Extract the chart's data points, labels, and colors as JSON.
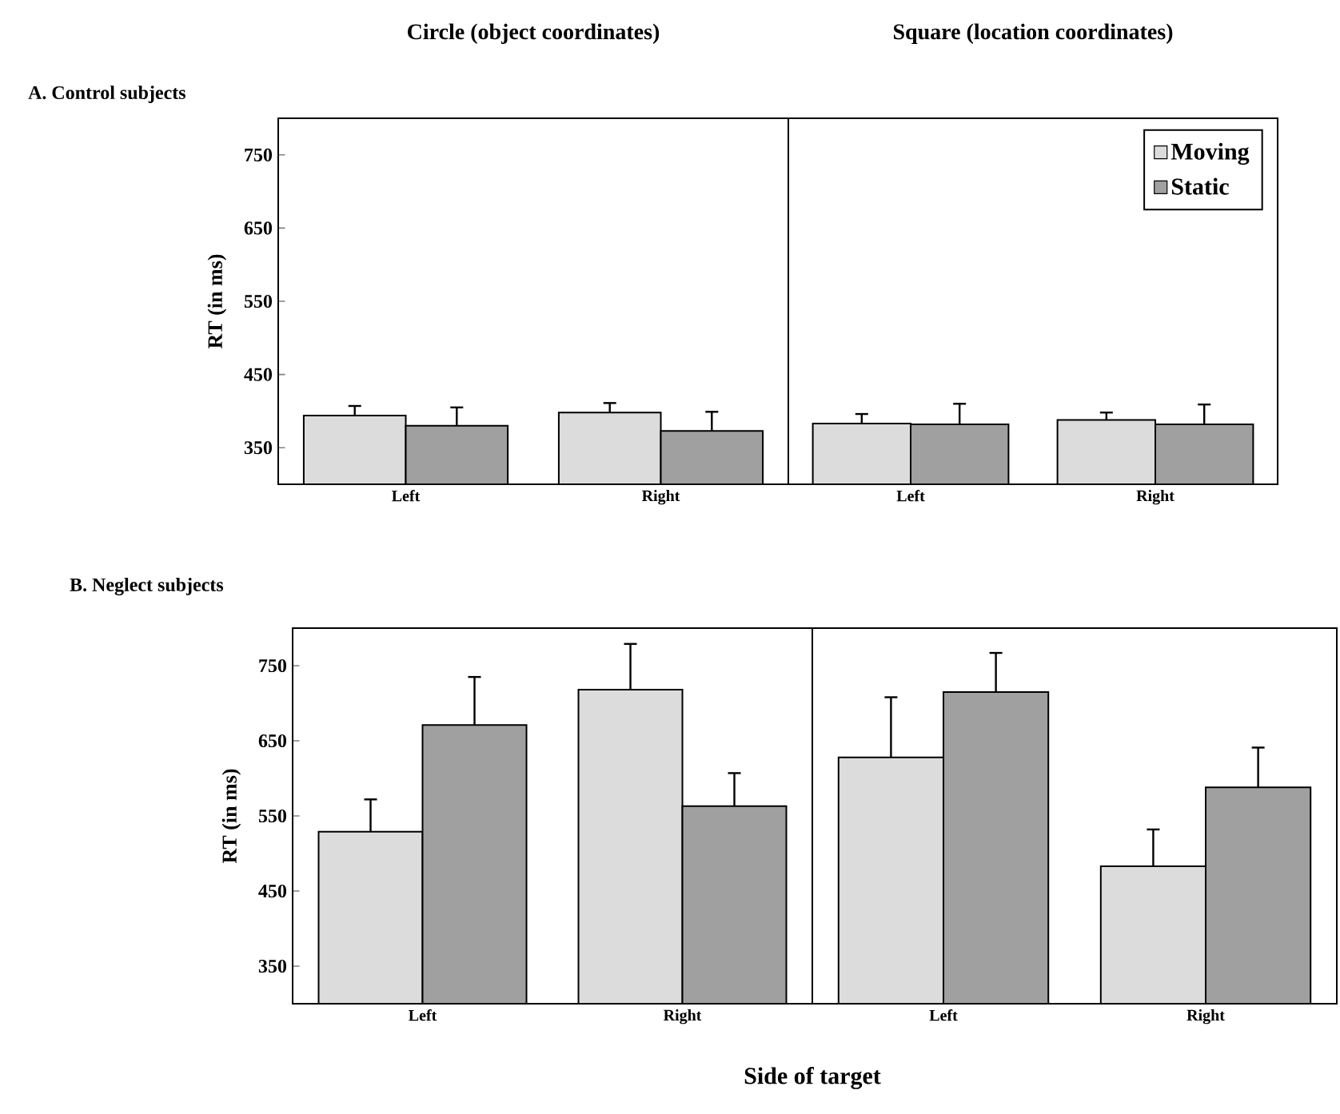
{
  "chart_data": [
    {
      "type": "bar",
      "title": "Circle (object coordinates)",
      "annotations": [
        "A. Control subjects"
      ],
      "ylabel": "RT (in ms)",
      "categories": [
        "Left",
        "Right"
      ],
      "ylim": [
        300,
        800
      ],
      "yticks": [
        350,
        450,
        550,
        650,
        750
      ],
      "series": [
        {
          "color": "#dcdcdc",
          "values": [
            394,
            398
          ],
          "errors": [
            [
              394,
              407
            ],
            [
              398,
              411
            ]
          ]
        },
        {
          "color": "#a0a0a0",
          "values": [
            380,
            373
          ],
          "errors": [
            [
              380,
              405
            ],
            [
              373,
              399
            ]
          ]
        }
      ]
    },
    {
      "type": "bar",
      "title": "Square (location coordinates)",
      "categories": [
        "Left",
        "Right"
      ],
      "ylim": [
        300,
        800
      ],
      "yticks": [
        350,
        450,
        550,
        650,
        750
      ],
      "tick_labels": "x",
      "legend": "top right",
      "series": [
        {
          "name": "Moving",
          "color": "#dcdcdc",
          "values": [
            383,
            388
          ],
          "errors": [
            [
              383,
              396
            ],
            [
              388,
              398
            ]
          ]
        },
        {
          "name": "Static",
          "color": "#a0a0a0",
          "values": [
            382,
            382
          ],
          "errors": [
            [
              382,
              410
            ],
            [
              382,
              409
            ]
          ]
        }
      ]
    },
    {
      "type": "bar",
      "annotations": [
        "B. Neglect subjects"
      ],
      "ylabel": "RT (in ms)",
      "xlabel": "Side of target",
      "categories": [
        "Left",
        "Right"
      ],
      "ylim": [
        300,
        800
      ],
      "yticks": [
        350,
        450,
        550,
        650,
        750
      ],
      "series": [
        {
          "color": "#dcdcdc",
          "values": [
            529,
            718
          ],
          "errors": [
            [
              529,
              572
            ],
            [
              718,
              779
            ]
          ]
        },
        {
          "color": "#a0a0a0",
          "values": [
            671,
            563
          ],
          "errors": [
            [
              671,
              735
            ],
            [
              563,
              607
            ]
          ]
        }
      ]
    },
    {
      "type": "bar",
      "categories": [
        "Left",
        "Right"
      ],
      "ylim": [
        300,
        800
      ],
      "yticks": [
        350,
        450,
        550,
        650,
        750
      ],
      "tick_labels": "x",
      "series": [
        {
          "color": "#dcdcdc",
          "values": [
            628,
            483
          ],
          "errors": [
            [
              628,
              708
            ],
            [
              483,
              532
            ]
          ]
        },
        {
          "color": "#a0a0a0",
          "values": [
            715,
            588
          ],
          "errors": [
            [
              715,
              767
            ],
            [
              588,
              641
            ]
          ]
        }
      ]
    }
  ]
}
